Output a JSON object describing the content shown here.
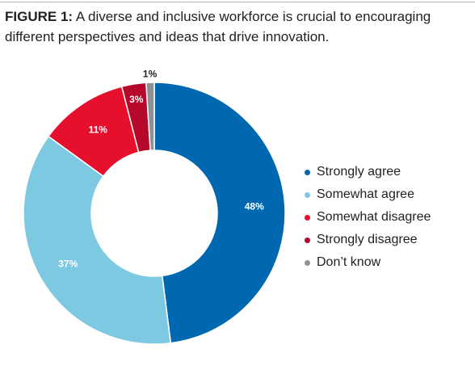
{
  "figure": {
    "label": "FIGURE 1:",
    "caption": "A diverse and inclusive workforce is crucial to encouraging different perspectives and ideas that drive innovation."
  },
  "chart_data": {
    "type": "pie",
    "donut": true,
    "title": "FIGURE 1: A diverse and inclusive workforce is crucial to encouraging different perspectives and ideas that drive innovation.",
    "legend_position": "right",
    "categories": [
      "Strongly agree",
      "Somewhat agree",
      "Somewhat disagree",
      "Strongly disagree",
      "Don’t know"
    ],
    "values": [
      48,
      37,
      11,
      3,
      1
    ],
    "labels": [
      "48%",
      "37%",
      "11%",
      "3%",
      "1%"
    ],
    "colors": [
      "#0068b0",
      "#7ec9e2",
      "#e60f2c",
      "#b5082a",
      "#8f9295"
    ],
    "label_colors": [
      "#ffffff",
      "#ffffff",
      "#ffffff",
      "#ffffff",
      "#222222"
    ]
  }
}
